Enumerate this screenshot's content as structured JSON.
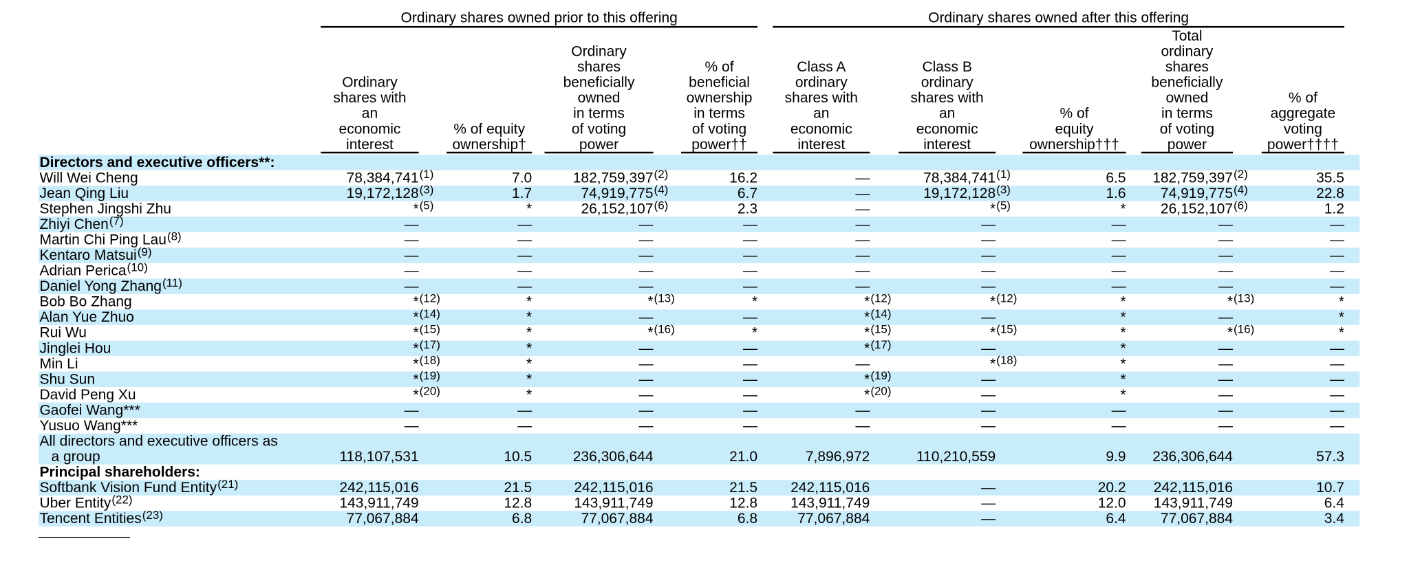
{
  "table": {
    "groups": [
      "Ordinary shares owned prior to this offering",
      "Ordinary shares owned after this offering"
    ],
    "headers": [
      [
        "Ordinary",
        "shares with",
        "an",
        "economic",
        "interest"
      ],
      [
        "% of equity",
        "ownership†"
      ],
      [
        "Ordinary",
        "shares",
        "beneficially",
        "owned",
        "in terms",
        "of voting",
        "power"
      ],
      [
        "% of",
        "beneficial",
        "ownership",
        "in terms",
        "of voting",
        "power††"
      ],
      [
        "Class A",
        "ordinary",
        "shares with",
        "an",
        "economic",
        "interest"
      ],
      [
        "Class B",
        "ordinary",
        "shares with",
        "an",
        "economic",
        "interest"
      ],
      [
        "% of",
        "equity",
        "ownership†††"
      ],
      [
        "Total",
        "ordinary",
        "shares",
        "beneficially",
        "owned",
        "in terms",
        "of voting",
        "power"
      ],
      [
        "% of",
        "aggregate",
        "voting",
        "power††††"
      ]
    ],
    "rows": [
      {
        "section": "Directors and executive officers**:"
      },
      {
        "name": "Will Wei Cheng",
        "cells": [
          [
            "78,384,741",
            "(1)"
          ],
          "7.0",
          [
            "182,759,397",
            "(2)"
          ],
          "16.2",
          "—",
          [
            "78,384,741",
            "(1)"
          ],
          "6.5",
          [
            "182,759,397",
            "(2)"
          ],
          "35.5"
        ]
      },
      {
        "name": "Jean Qing Liu",
        "cells": [
          [
            "19,172,128",
            "(3)"
          ],
          "1.7",
          [
            "74,919,775",
            "(4)"
          ],
          "6.7",
          "—",
          [
            "19,172,128",
            "(3)"
          ],
          "1.6",
          [
            "74,919,775",
            "(4)"
          ],
          "22.8"
        ]
      },
      {
        "name": "Stephen Jingshi Zhu",
        "cells": [
          [
            "*",
            "(5)"
          ],
          "*",
          [
            "26,152,107",
            "(6)"
          ],
          "2.3",
          "—",
          [
            "*",
            "(5)"
          ],
          "*",
          [
            "26,152,107",
            "(6)"
          ],
          "1.2"
        ]
      },
      {
        "name": "Zhiyi Chen",
        "note": "(7)",
        "cells": [
          "—",
          "—",
          "—",
          "—",
          "—",
          "—",
          "—",
          "—",
          "—"
        ]
      },
      {
        "name": "Martin Chi Ping Lau",
        "note": "(8)",
        "cells": [
          "—",
          "—",
          "—",
          "—",
          "—",
          "—",
          "—",
          "—",
          "—"
        ]
      },
      {
        "name": "Kentaro Matsui",
        "note": "(9)",
        "cells": [
          "—",
          "—",
          "—",
          "—",
          "—",
          "—",
          "—",
          "—",
          "—"
        ]
      },
      {
        "name": "Adrian Perica",
        "note": "(10)",
        "cells": [
          "—",
          "—",
          "—",
          "—",
          "—",
          "—",
          "—",
          "—",
          "—"
        ]
      },
      {
        "name": "Daniel Yong Zhang",
        "note": "(11)",
        "cells": [
          "—",
          "—",
          "—",
          "—",
          "—",
          "—",
          "—",
          "—",
          "—"
        ]
      },
      {
        "name": "Bob Bo Zhang",
        "cells": [
          [
            "*",
            "(12)"
          ],
          "*",
          [
            "*",
            "(13)"
          ],
          "*",
          [
            "*",
            "(12)"
          ],
          [
            "*",
            "(12)"
          ],
          "*",
          [
            "*",
            "(13)"
          ],
          "*"
        ]
      },
      {
        "name": "Alan Yue Zhuo",
        "cells": [
          [
            "*",
            "(14)"
          ],
          "*",
          "—",
          "—",
          [
            "*",
            "(14)"
          ],
          "—",
          "*",
          "—",
          "*"
        ]
      },
      {
        "name": "Rui Wu",
        "cells": [
          [
            "*",
            "(15)"
          ],
          "*",
          [
            "*",
            "(16)"
          ],
          "*",
          [
            "*",
            "(15)"
          ],
          [
            "*",
            "(15)"
          ],
          "*",
          [
            "*",
            "(16)"
          ],
          "*"
        ]
      },
      {
        "name": "Jinglei Hou",
        "cells": [
          [
            "*",
            "(17)"
          ],
          "*",
          "—",
          "—",
          [
            "*",
            "(17)"
          ],
          "—",
          "*",
          "—",
          "—"
        ]
      },
      {
        "name": "Min Li",
        "cells": [
          [
            "*",
            "(18)"
          ],
          "*",
          "—",
          "—",
          "—",
          [
            "*",
            "(18)"
          ],
          "*",
          "—",
          "—"
        ]
      },
      {
        "name": "Shu Sun",
        "cells": [
          [
            "*",
            "(19)"
          ],
          "*",
          "—",
          "—",
          [
            "*",
            "(19)"
          ],
          "—",
          "*",
          "—",
          "—"
        ]
      },
      {
        "name": "David Peng Xu",
        "cells": [
          [
            "*",
            "(20)"
          ],
          "*",
          "—",
          "—",
          [
            "*",
            "(20)"
          ],
          "—",
          "*",
          "—",
          "—"
        ]
      },
      {
        "name": "Gaofei Wang***",
        "cells": [
          "—",
          "—",
          "—",
          "—",
          "—",
          "—",
          "—",
          "—",
          "—"
        ]
      },
      {
        "name": "Yusuo Wang***",
        "cells": [
          "—",
          "—",
          "—",
          "—",
          "—",
          "—",
          "—",
          "—",
          "—"
        ]
      },
      {
        "name": [
          "All directors and executive officers as",
          "a group"
        ],
        "cells": [
          "118,107,531",
          "10.5",
          "236,306,644",
          "21.0",
          "7,896,972",
          "110,210,559",
          "9.9",
          "236,306,644",
          "57.3"
        ]
      },
      {
        "section": "Principal shareholders:"
      },
      {
        "name": "Softbank Vision Fund Entity",
        "note": "(21)",
        "cells": [
          "242,115,016",
          "21.5",
          "242,115,016",
          "21.5",
          "242,115,016",
          "—",
          "20.2",
          "242,115,016",
          "10.7"
        ]
      },
      {
        "name": "Uber Entity",
        "note": "(22)",
        "cells": [
          "143,911,749",
          "12.8",
          "143,911,749",
          "12.8",
          "143,911,749",
          "—",
          "12.0",
          "143,911,749",
          "6.4"
        ]
      },
      {
        "name": "Tencent Entities",
        "note": "(23)",
        "cells": [
          "77,067,884",
          "6.8",
          "77,067,884",
          "6.8",
          "77,067,884",
          "—",
          "6.4",
          "77,067,884",
          "3.4"
        ]
      }
    ]
  }
}
